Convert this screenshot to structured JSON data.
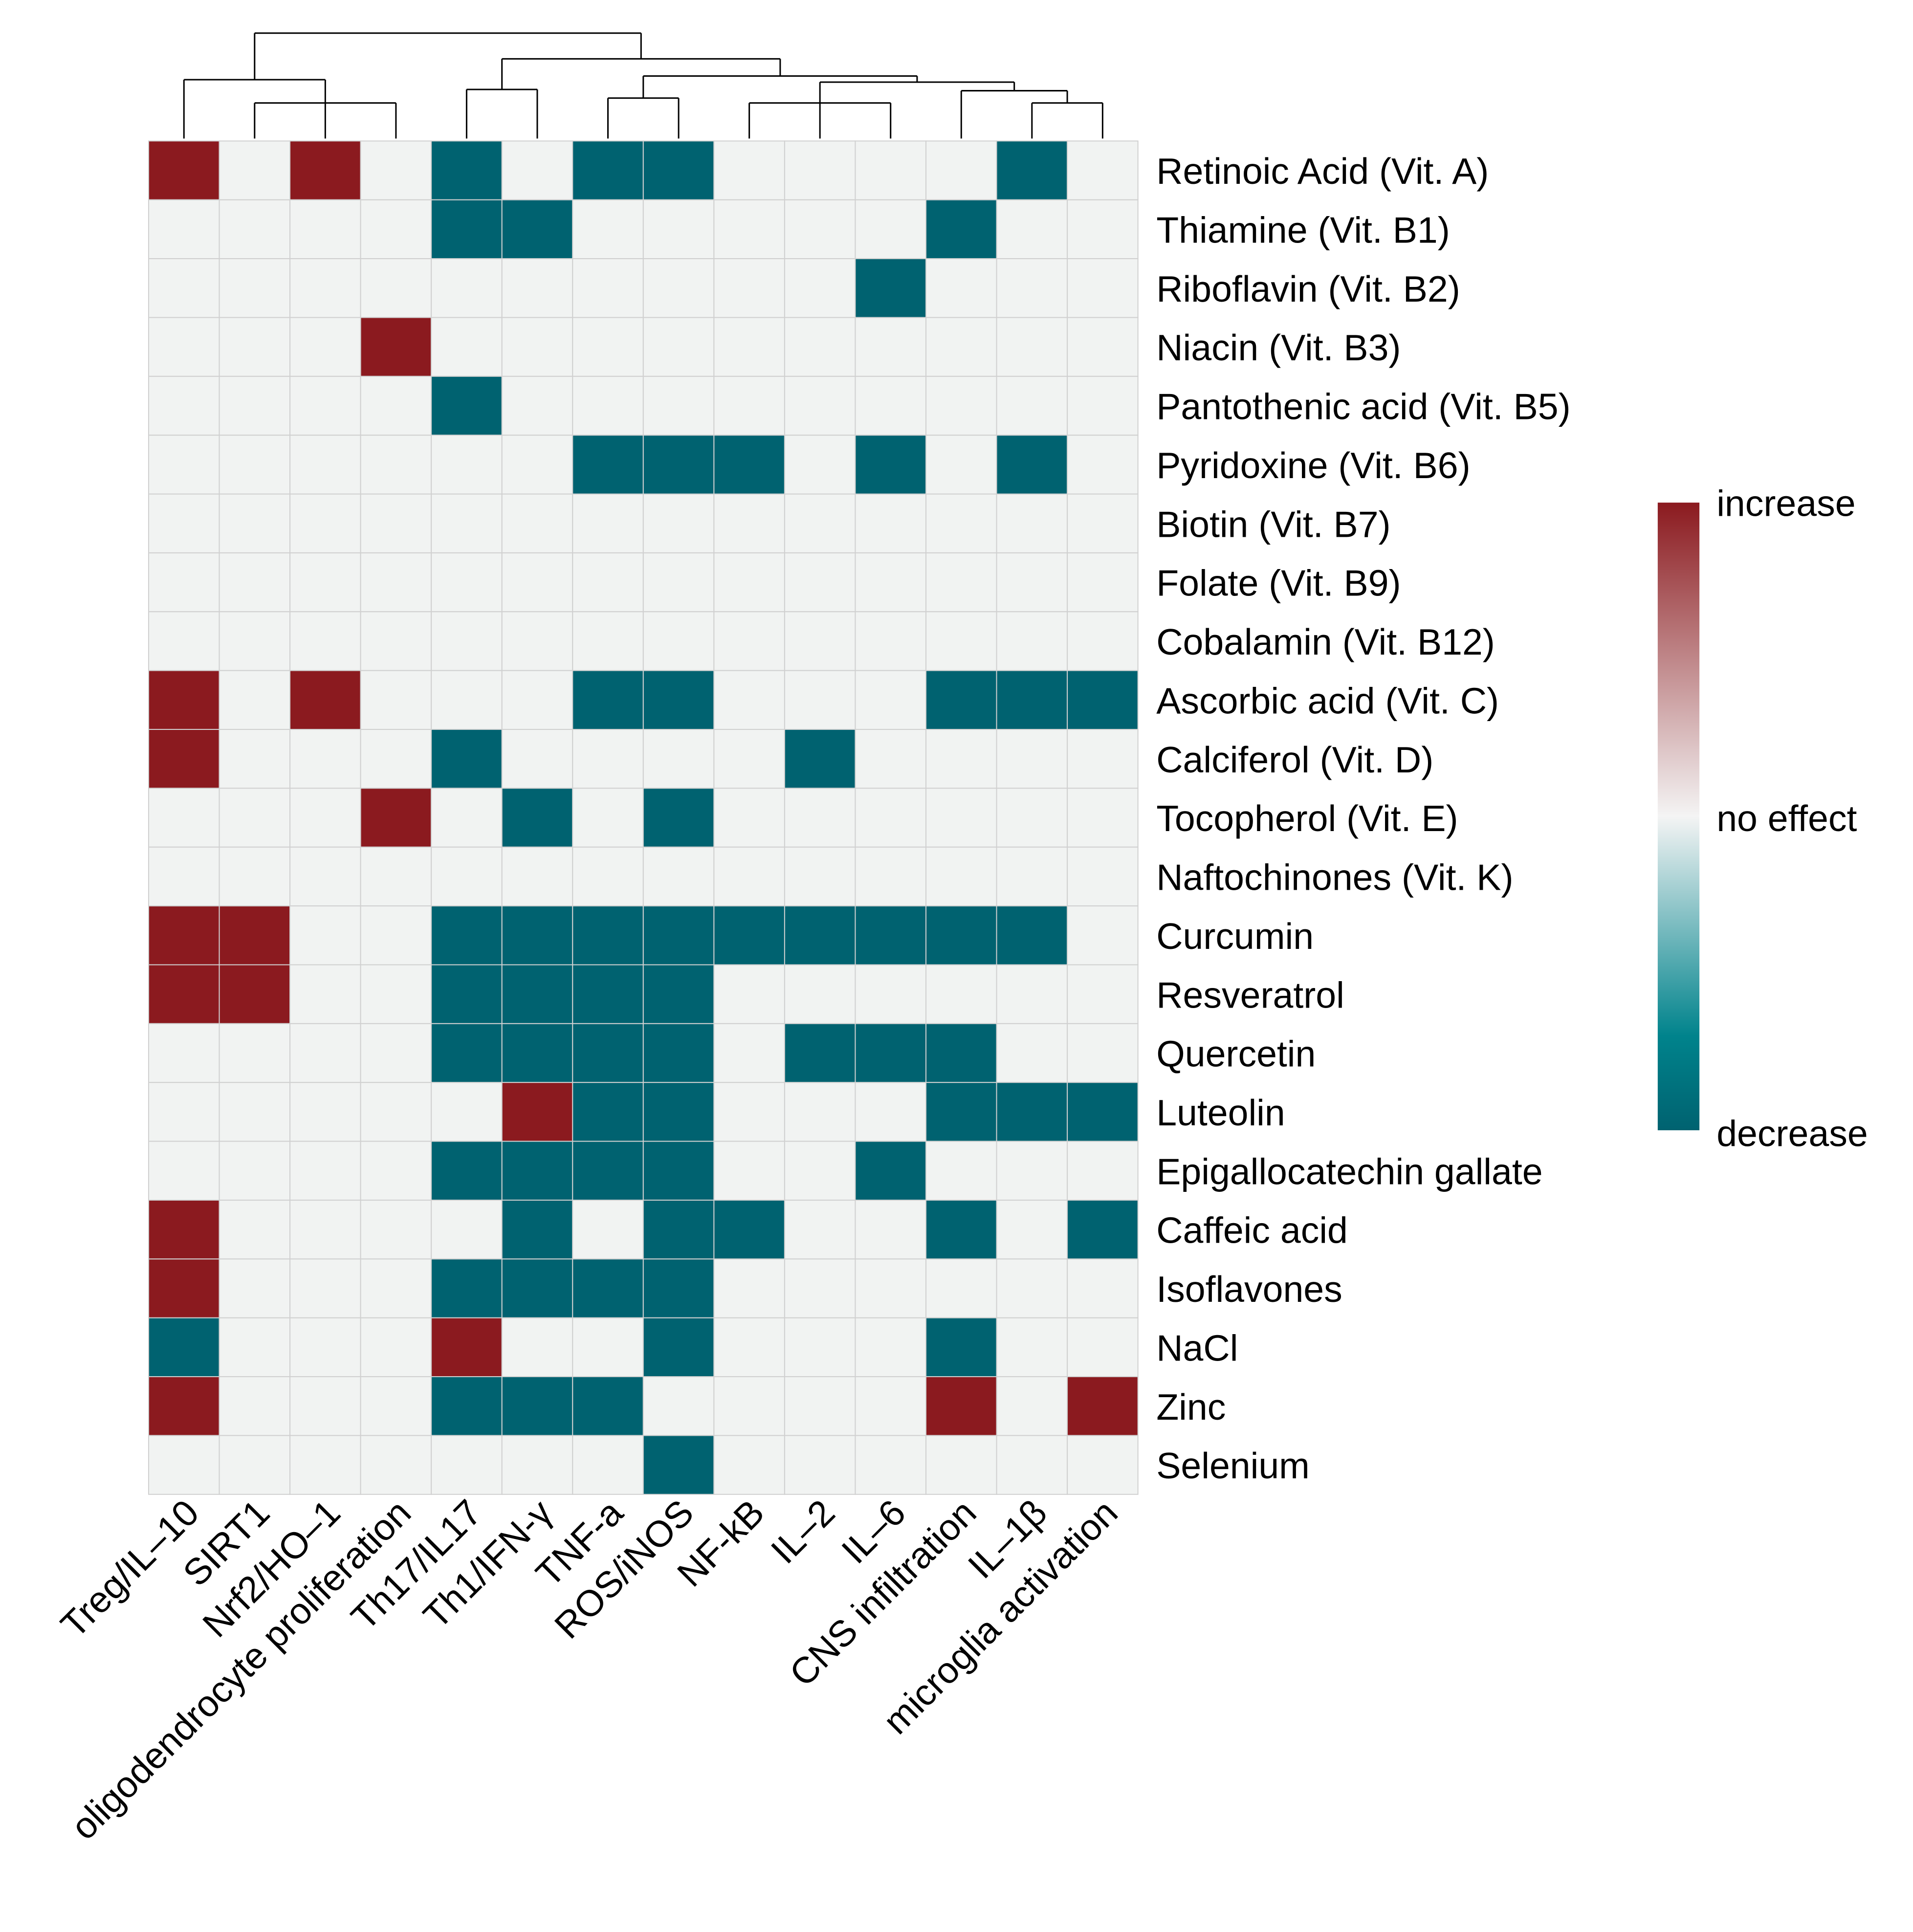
{
  "chart_data": {
    "type": "heatmap",
    "title": "",
    "columns": [
      "Treg/IL–10",
      "SIRT1",
      "Nrf2/HO–1",
      "oligodendrocyte proliferation",
      "Th17/IL17",
      "Th1/IFN‐γ",
      "TNF‐a",
      "ROS/iNOS",
      "NF‐kB",
      "IL–2",
      "IL–6",
      "CNS infiltration",
      "IL–1β",
      "microglia activation"
    ],
    "rows": [
      "Retinoic Acid (Vit. A)",
      "Thiamine (Vit. B1)",
      "Riboflavin (Vit. B2)",
      "Niacin (Vit. B3)",
      "Pantothenic acid (Vit. B5)",
      "Pyridoxine (Vit. B6)",
      "Biotin (Vit. B7)",
      "Folate (Vit. B9)",
      "Cobalamin (Vit. B12)",
      "Ascorbic acid (Vit. C)",
      "Calciferol (Vit. D)",
      "Tocopherol (Vit. E)",
      "Naftochinones (Vit. K)",
      "Curcumin",
      "Resveratrol",
      "Quercetin",
      "Luteolin",
      "Epigallocatechin gallate",
      "Caffeic acid",
      "Isoflavones",
      "NaCl",
      "Zinc",
      "Selenium"
    ],
    "values": [
      [
        1,
        0,
        1,
        0,
        -1,
        0,
        -1,
        -1,
        0,
        0,
        0,
        0,
        -1,
        0
      ],
      [
        0,
        0,
        0,
        0,
        -1,
        -1,
        0,
        0,
        0,
        0,
        0,
        -1,
        0,
        0
      ],
      [
        0,
        0,
        0,
        0,
        0,
        0,
        0,
        0,
        0,
        0,
        -1,
        0,
        0,
        0
      ],
      [
        0,
        0,
        0,
        1,
        0,
        0,
        0,
        0,
        0,
        0,
        0,
        0,
        0,
        0
      ],
      [
        0,
        0,
        0,
        0,
        -1,
        0,
        0,
        0,
        0,
        0,
        0,
        0,
        0,
        0
      ],
      [
        0,
        0,
        0,
        0,
        0,
        0,
        -1,
        -1,
        -1,
        0,
        -1,
        0,
        -1,
        0
      ],
      [
        0,
        0,
        0,
        0,
        0,
        0,
        0,
        0,
        0,
        0,
        0,
        0,
        0,
        0
      ],
      [
        0,
        0,
        0,
        0,
        0,
        0,
        0,
        0,
        0,
        0,
        0,
        0,
        0,
        0
      ],
      [
        0,
        0,
        0,
        0,
        0,
        0,
        0,
        0,
        0,
        0,
        0,
        0,
        0,
        0
      ],
      [
        1,
        0,
        1,
        0,
        0,
        0,
        -1,
        -1,
        0,
        0,
        0,
        -1,
        -1,
        -1
      ],
      [
        1,
        0,
        0,
        0,
        -1,
        0,
        0,
        0,
        0,
        -1,
        0,
        0,
        0,
        0
      ],
      [
        0,
        0,
        0,
        1,
        0,
        -1,
        0,
        -1,
        0,
        0,
        0,
        0,
        0,
        0
      ],
      [
        0,
        0,
        0,
        0,
        0,
        0,
        0,
        0,
        0,
        0,
        0,
        0,
        0,
        0
      ],
      [
        1,
        1,
        0,
        0,
        -1,
        -1,
        -1,
        -1,
        -1,
        -1,
        -1,
        -1,
        -1,
        0
      ],
      [
        1,
        1,
        0,
        0,
        -1,
        -1,
        -1,
        -1,
        0,
        0,
        0,
        0,
        0,
        0
      ],
      [
        0,
        0,
        0,
        0,
        -1,
        -1,
        -1,
        -1,
        0,
        -1,
        -1,
        -1,
        0,
        0
      ],
      [
        0,
        0,
        0,
        0,
        0,
        1,
        -1,
        -1,
        0,
        0,
        0,
        -1,
        -1,
        -1
      ],
      [
        0,
        0,
        0,
        0,
        -1,
        -1,
        -1,
        -1,
        0,
        0,
        -1,
        0,
        0,
        0
      ],
      [
        1,
        0,
        0,
        0,
        0,
        -1,
        0,
        -1,
        -1,
        0,
        0,
        -1,
        0,
        -1
      ],
      [
        1,
        0,
        0,
        0,
        -1,
        -1,
        -1,
        -1,
        0,
        0,
        0,
        0,
        0,
        0
      ],
      [
        -1,
        0,
        0,
        0,
        1,
        0,
        0,
        -1,
        0,
        0,
        0,
        -1,
        0,
        0
      ],
      [
        1,
        0,
        0,
        0,
        -1,
        -1,
        -1,
        0,
        0,
        0,
        0,
        1,
        0,
        1
      ],
      [
        0,
        0,
        0,
        0,
        0,
        0,
        0,
        -1,
        0,
        0,
        0,
        0,
        0,
        0
      ]
    ],
    "value_range": [
      -1,
      1
    ],
    "legend": {
      "labels": [
        "increase",
        "no effect",
        "decrease"
      ],
      "placement": "right"
    },
    "colors": {
      "increase": "#8b1a1f",
      "none": "#f1f3f2",
      "decrease": "#006270",
      "grid": "#d0d0d0"
    },
    "column_dendrogram": true
  }
}
